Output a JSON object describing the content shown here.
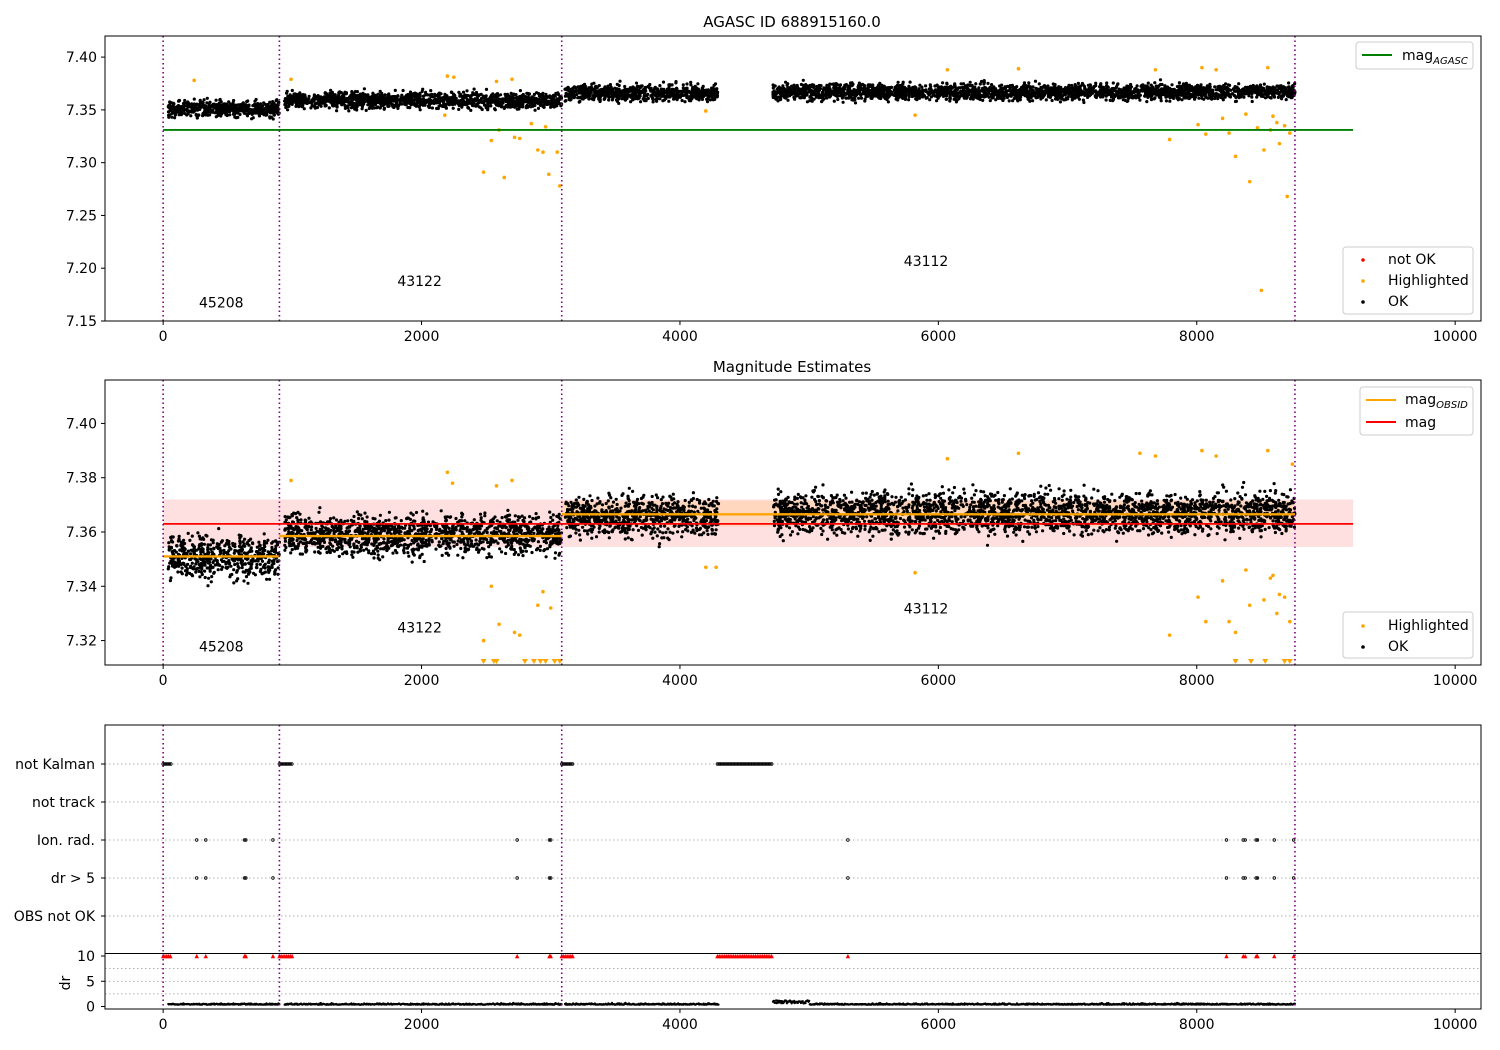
{
  "chart_data": [
    {
      "type": "scatter",
      "title": "AGASC ID 688915160.0",
      "xlim": [
        -450,
        10200
      ],
      "ylim": [
        7.15,
        7.42
      ],
      "xticks": [
        0,
        2000,
        4000,
        6000,
        8000,
        10000
      ],
      "yticks": [
        7.15,
        7.2,
        7.25,
        7.3,
        7.35,
        7.4
      ],
      "ytick_labels": [
        "7.15",
        "7.20",
        "7.25",
        "7.30",
        "7.35",
        "7.40"
      ],
      "obs_boundaries": [
        0,
        900,
        3085,
        8760
      ],
      "obs_labels": [
        {
          "text": "45208",
          "x": 450,
          "y": 7.163
        },
        {
          "text": "43122",
          "x": 1985,
          "y": 7.183
        },
        {
          "text": "43112",
          "x": 5905,
          "y": 7.202
        }
      ],
      "segments": [
        {
          "x0": 40,
          "x1": 900,
          "center": 7.351,
          "spread": 0.006
        },
        {
          "x0": 940,
          "x1": 3085,
          "center": 7.359,
          "spread": 0.006
        },
        {
          "x0": 3110,
          "x1": 4300,
          "center": 7.366,
          "spread": 0.006
        },
        {
          "x0": 4720,
          "x1": 8760,
          "center": 7.367,
          "spread": 0.006
        }
      ],
      "lines": [
        {
          "name": "mag_AGASC",
          "x0": 0,
          "x1": 9210,
          "y": 7.331,
          "color": "#008000"
        }
      ],
      "highlighted_points": [
        [
          240,
          7.378
        ],
        [
          990,
          7.379
        ],
        [
          2180,
          7.345
        ],
        [
          2200,
          7.382
        ],
        [
          2250,
          7.381
        ],
        [
          2480,
          7.291
        ],
        [
          2540,
          7.321
        ],
        [
          2580,
          7.377
        ],
        [
          2600,
          7.331
        ],
        [
          2640,
          7.286
        ],
        [
          2700,
          7.379
        ],
        [
          2720,
          7.324
        ],
        [
          2760,
          7.323
        ],
        [
          2850,
          7.337
        ],
        [
          2900,
          7.312
        ],
        [
          2940,
          7.31
        ],
        [
          2960,
          7.334
        ],
        [
          2985,
          7.289
        ],
        [
          3050,
          7.31
        ],
        [
          3070,
          7.278
        ],
        [
          4200,
          7.349
        ],
        [
          5820,
          7.345
        ],
        [
          6070,
          7.388
        ],
        [
          6620,
          7.389
        ],
        [
          7680,
          7.388
        ],
        [
          7790,
          7.322
        ],
        [
          8010,
          7.336
        ],
        [
          8040,
          7.39
        ],
        [
          8070,
          7.327
        ],
        [
          8150,
          7.388
        ],
        [
          8200,
          7.342
        ],
        [
          8250,
          7.328
        ],
        [
          8300,
          7.306
        ],
        [
          8380,
          7.346
        ],
        [
          8410,
          7.282
        ],
        [
          8470,
          7.333
        ],
        [
          8500,
          7.179
        ],
        [
          8520,
          7.312
        ],
        [
          8550,
          7.39
        ],
        [
          8570,
          7.331
        ],
        [
          8590,
          7.344
        ],
        [
          8620,
          7.338
        ],
        [
          8640,
          7.318
        ],
        [
          8680,
          7.335
        ],
        [
          8700,
          7.268
        ],
        [
          8720,
          7.328
        ]
      ],
      "legends": [
        {
          "position": "upper right",
          "entries": [
            {
              "label": "mag",
              "sub": "AGASC",
              "color": "#008000",
              "marker": "line"
            }
          ]
        },
        {
          "position": "lower right",
          "entries": [
            {
              "label": "not OK",
              "color": "#ff0000",
              "marker": "dot"
            },
            {
              "label": "Highlighted",
              "color": "#ffa500",
              "marker": "dot"
            },
            {
              "label": "OK",
              "color": "#000000",
              "marker": "dot"
            }
          ]
        }
      ]
    },
    {
      "type": "scatter",
      "title": "Magnitude Estimates",
      "xlim": [
        -450,
        10200
      ],
      "ylim": [
        7.311,
        7.416
      ],
      "xticks": [
        0,
        2000,
        4000,
        6000,
        8000,
        10000
      ],
      "yticks": [
        7.32,
        7.34,
        7.36,
        7.38,
        7.4
      ],
      "ytick_labels": [
        "7.32",
        "7.34",
        "7.36",
        "7.38",
        "7.40"
      ],
      "obs_boundaries": [
        0,
        900,
        3085,
        8760
      ],
      "obs_labels": [
        {
          "text": "45208",
          "x": 450,
          "y": 7.316
        },
        {
          "text": "43122",
          "x": 1985,
          "y": 7.323
        },
        {
          "text": "43112",
          "x": 5905,
          "y": 7.33
        }
      ],
      "segments": [
        {
          "x0": 40,
          "x1": 900,
          "center": 7.351,
          "spread": 0.006
        },
        {
          "x0": 940,
          "x1": 3085,
          "center": 7.359,
          "spread": 0.006
        },
        {
          "x0": 3110,
          "x1": 4300,
          "center": 7.366,
          "spread": 0.006
        },
        {
          "x0": 4720,
          "x1": 8760,
          "center": 7.367,
          "spread": 0.006
        }
      ],
      "mag_obsid": [
        {
          "x0": 0,
          "x1": 900,
          "y": 7.351
        },
        {
          "x0": 900,
          "x1": 3085,
          "y": 7.3585
        },
        {
          "x0": 3085,
          "x1": 8760,
          "y": 7.3665
        }
      ],
      "mag": {
        "x0": 0,
        "x1": 9210,
        "y": 7.363,
        "band": [
          7.3545,
          7.372
        ]
      },
      "mag_obsid_band": {
        "x0": 3085,
        "x1": 8760,
        "band": [
          7.362,
          7.3715
        ]
      },
      "highlighted_points": [
        [
          2200,
          7.382
        ],
        [
          2240,
          7.378
        ],
        [
          990,
          7.379
        ],
        [
          2480,
          7.32
        ],
        [
          2540,
          7.34
        ],
        [
          2580,
          7.377
        ],
        [
          2600,
          7.326
        ],
        [
          2700,
          7.379
        ],
        [
          2720,
          7.323
        ],
        [
          2760,
          7.322
        ],
        [
          2900,
          7.333
        ],
        [
          2940,
          7.338
        ],
        [
          3000,
          7.332
        ],
        [
          4200,
          7.347
        ],
        [
          4280,
          7.347
        ],
        [
          5820,
          7.345
        ],
        [
          6070,
          7.387
        ],
        [
          6620,
          7.389
        ],
        [
          7560,
          7.389
        ],
        [
          7680,
          7.388
        ],
        [
          7790,
          7.322
        ],
        [
          8010,
          7.336
        ],
        [
          8040,
          7.39
        ],
        [
          8070,
          7.327
        ],
        [
          8150,
          7.388
        ],
        [
          8200,
          7.342
        ],
        [
          8250,
          7.327
        ],
        [
          8300,
          7.323
        ],
        [
          8380,
          7.346
        ],
        [
          8410,
          7.333
        ],
        [
          8520,
          7.335
        ],
        [
          8550,
          7.39
        ],
        [
          8570,
          7.343
        ],
        [
          8590,
          7.344
        ],
        [
          8620,
          7.33
        ],
        [
          8640,
          7.337
        ],
        [
          8680,
          7.336
        ],
        [
          8720,
          7.327
        ],
        [
          8740,
          7.385
        ]
      ],
      "below_range_points": [
        2480,
        2560,
        2580,
        2800,
        2870,
        2920,
        2960,
        3030,
        3070,
        8300,
        8420,
        8530,
        8680,
        8720
      ],
      "legends": [
        {
          "position": "upper right",
          "entries": [
            {
              "label": "mag",
              "sub": "OBSID",
              "color": "#ffa500",
              "marker": "line"
            },
            {
              "label": "mag",
              "color": "#ff0000",
              "marker": "line"
            }
          ]
        },
        {
          "position": "lower right",
          "entries": [
            {
              "label": "Highlighted",
              "color": "#ffa500",
              "marker": "dot"
            },
            {
              "label": "OK",
              "color": "#000000",
              "marker": "dot"
            }
          ]
        }
      ]
    },
    {
      "type": "scatter",
      "title": "",
      "xlim": [
        -450,
        10200
      ],
      "xticks": [
        0,
        2000,
        4000,
        6000,
        8000,
        10000
      ],
      "obs_boundaries": [
        0,
        900,
        3085,
        8760
      ],
      "flag_rows": [
        "not Kalman",
        "not track",
        "Ion. rad.",
        "dr > 5",
        "OBS not OK"
      ],
      "flag_points": {
        "not Kalman": [
          [
            0,
            60
          ],
          [
            900,
            1000
          ],
          [
            3085,
            3180
          ],
          [
            4290,
            4720
          ]
        ],
        "not track": [],
        "Ion. rad.": [
          [
            260
          ],
          [
            330
          ],
          [
            630
          ],
          [
            640
          ],
          [
            850
          ],
          [
            2740
          ],
          [
            2990
          ],
          [
            3000
          ],
          [
            5300
          ],
          [
            8230
          ],
          [
            8360
          ],
          [
            8375
          ],
          [
            8460
          ],
          [
            8470
          ],
          [
            8600
          ],
          [
            8750
          ]
        ],
        "dr > 5": [
          [
            260
          ],
          [
            330
          ],
          [
            630
          ],
          [
            640
          ],
          [
            850
          ],
          [
            2740
          ],
          [
            2990
          ],
          [
            3000
          ],
          [
            5300
          ],
          [
            8230
          ],
          [
            8360
          ],
          [
            8375
          ],
          [
            8460
          ],
          [
            8470
          ],
          [
            8600
          ],
          [
            8750
          ]
        ],
        "OBS not OK": []
      },
      "dr": {
        "ylim": [
          -0.5,
          10.5
        ],
        "yticks": [
          0,
          5,
          10
        ],
        "ytick_labels": [
          "0",
          "5",
          "10"
        ],
        "ylabel": "dr",
        "clipped_value": 10,
        "baseline": 0.35,
        "elevated_ranges": [
          [
            4720,
            5000,
            1.0
          ]
        ]
      }
    }
  ],
  "colors": {
    "ok": "#000000",
    "highlighted": "#ffa500",
    "not_ok": "#ff0000",
    "agasc": "#008000",
    "obsid": "#ffa500",
    "mag": "#ff0000",
    "boundary": "#800080"
  }
}
